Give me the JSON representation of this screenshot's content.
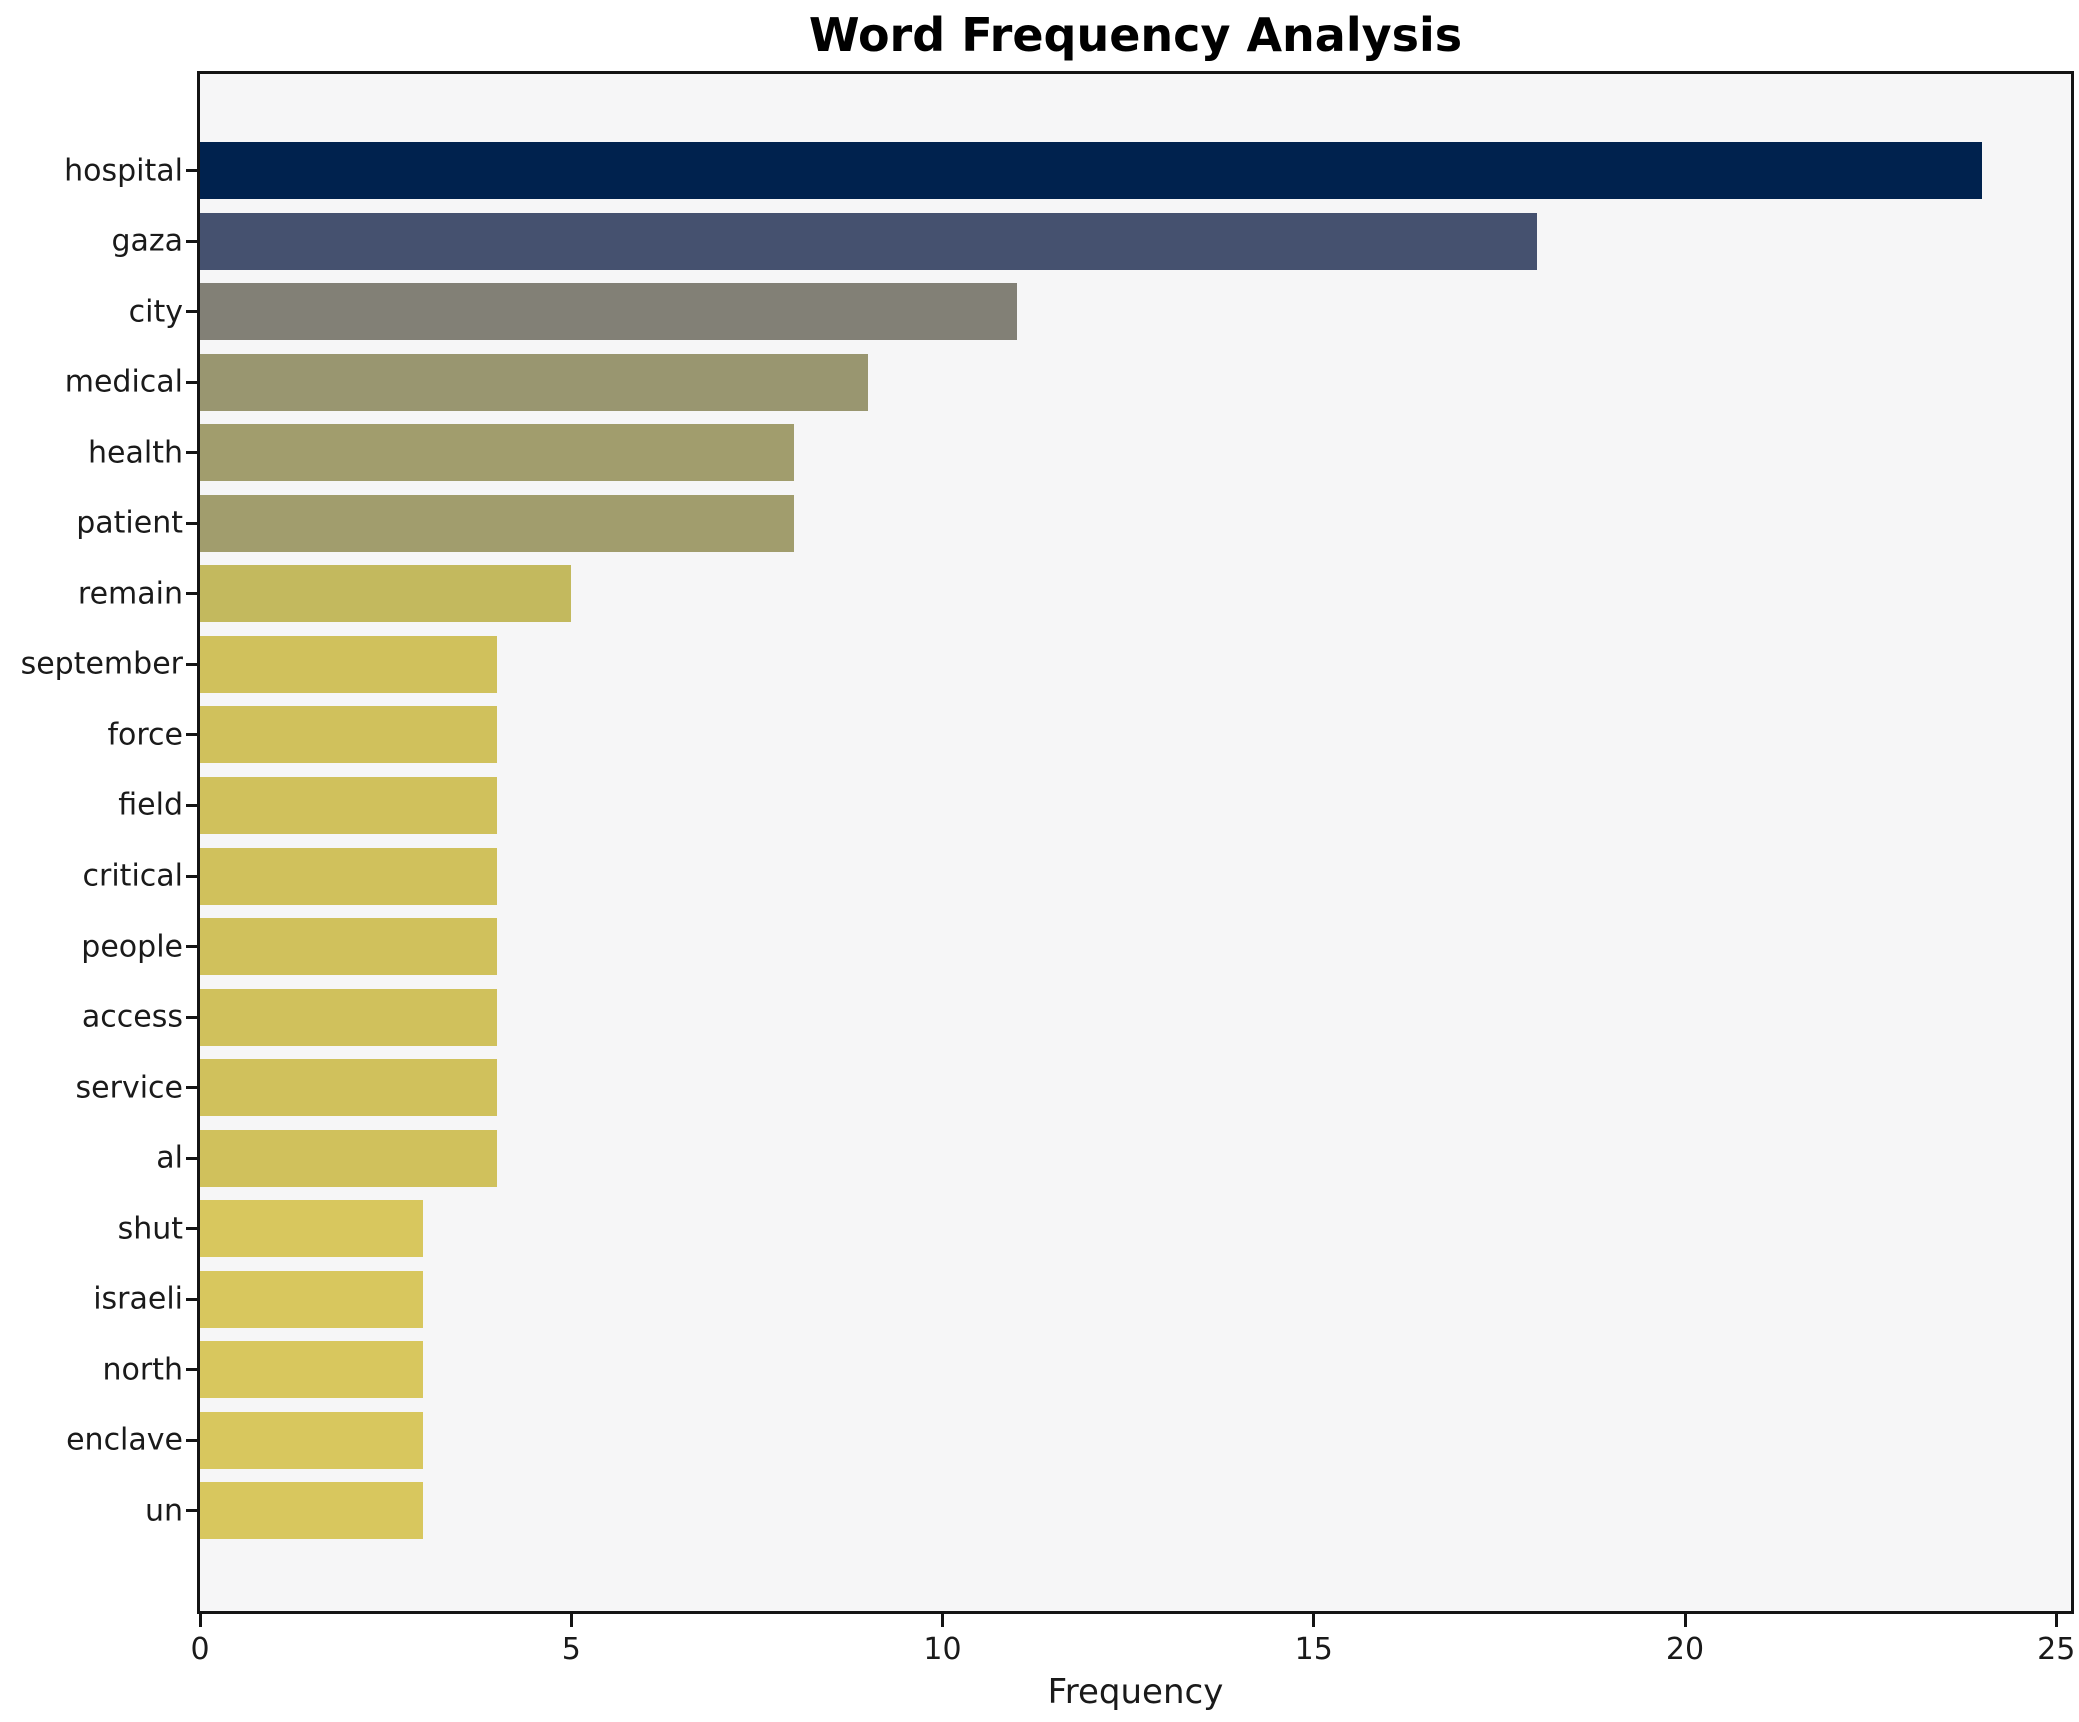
{
  "chart_data": {
    "type": "bar",
    "orientation": "horizontal",
    "title": "Word Frequency Analysis",
    "xlabel": "Frequency",
    "ylabel": "",
    "categories": [
      "hospital",
      "gaza",
      "city",
      "medical",
      "health",
      "patient",
      "remain",
      "september",
      "force",
      "field",
      "critical",
      "people",
      "access",
      "service",
      "al",
      "shut",
      "israeli",
      "north",
      "enclave",
      "un"
    ],
    "values": [
      24,
      18,
      11,
      9,
      8,
      8,
      5,
      4,
      4,
      4,
      4,
      4,
      4,
      4,
      4,
      3,
      3,
      3,
      3,
      3
    ],
    "bar_colors": [
      "#00224e",
      "#45516f",
      "#828076",
      "#999670",
      "#a19d6d",
      "#a19d6d",
      "#c3b95e",
      "#d0c15c",
      "#d0c15c",
      "#d0c15c",
      "#d0c15c",
      "#d0c15c",
      "#d0c15c",
      "#d0c15c",
      "#d0c15c",
      "#d8c75e",
      "#d8c75e",
      "#d8c75e",
      "#d8c75e",
      "#d8c75e"
    ],
    "xticks": [
      0,
      5,
      10,
      15,
      20,
      25
    ],
    "xlim": [
      0,
      25.2
    ],
    "grid": false,
    "legend_position": "none",
    "colors": {
      "plot_background": "#f6f6f7",
      "figure_background": "#ffffff",
      "spine": "#141414",
      "tick_text": "#1a1a1a",
      "title_text": "#000000"
    }
  }
}
